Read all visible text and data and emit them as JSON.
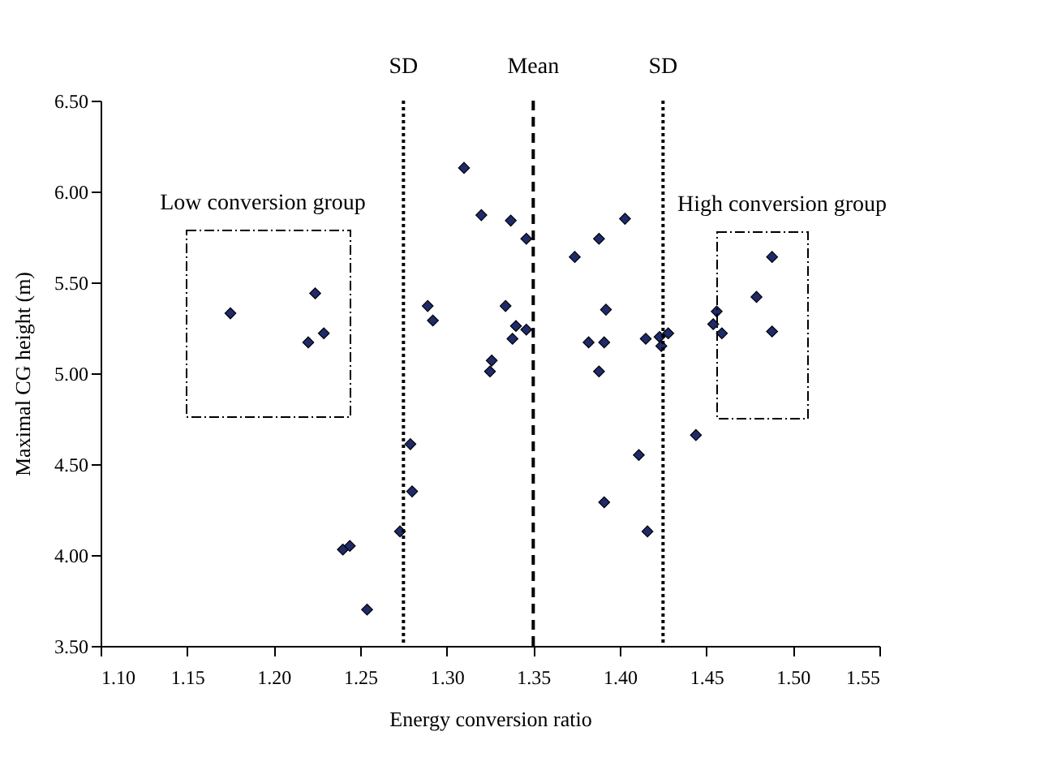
{
  "chart_data": {
    "type": "scatter",
    "xlabel": "Energy conversion ratio",
    "ylabel": "Maximal CG height (m)",
    "marker": "diamond",
    "grid": false,
    "xlim": [
      1.1,
      1.55
    ],
    "ylim": [
      3.5,
      6.5
    ],
    "xticks": [
      {
        "value": 1.1,
        "label": "1.10"
      },
      {
        "value": 1.15,
        "label": "1.15"
      },
      {
        "value": 1.2,
        "label": "1.20"
      },
      {
        "value": 1.25,
        "label": "1.25"
      },
      {
        "value": 1.3,
        "label": "1.30"
      },
      {
        "value": 1.35,
        "label": "1.35"
      },
      {
        "value": 1.4,
        "label": "1.40"
      },
      {
        "value": 1.45,
        "label": "1.45"
      },
      {
        "value": 1.5,
        "label": "1.50"
      },
      {
        "value": 1.55,
        "label": "1.55"
      }
    ],
    "yticks": [
      {
        "value": 3.5,
        "label": "3.50"
      },
      {
        "value": 4,
        "label": "4.00"
      },
      {
        "value": 4.5,
        "label": "4.50"
      },
      {
        "value": 5,
        "label": "5.00"
      },
      {
        "value": 5.5,
        "label": "5.50"
      },
      {
        "value": 6,
        "label": "6.00"
      },
      {
        "value": 6.5,
        "label": "6.50"
      }
    ],
    "series": [
      {
        "color": "#1f2a6b",
        "x": [
          1.175,
          1.224,
          1.22,
          1.229,
          1.279,
          1.28,
          1.273,
          1.24,
          1.244,
          1.254,
          1.31,
          1.32,
          1.337,
          1.346,
          1.403,
          1.388,
          1.374,
          1.289,
          1.292,
          1.334,
          1.34,
          1.338,
          1.346,
          1.326,
          1.325,
          1.392,
          1.382,
          1.391,
          1.388,
          1.415,
          1.423,
          1.428,
          1.424,
          1.444,
          1.411,
          1.391,
          1.416,
          1.488,
          1.479,
          1.456,
          1.454,
          1.459,
          1.488
        ],
        "values": [
          5.33,
          5.44,
          5.17,
          5.22,
          4.61,
          4.35,
          4.13,
          4.03,
          4.05,
          3.7,
          6.13,
          5.87,
          5.84,
          5.74,
          5.85,
          5.74,
          5.64,
          5.37,
          5.29,
          5.37,
          5.26,
          5.19,
          5.24,
          5.07,
          5.01,
          5.35,
          5.17,
          5.17,
          5.01,
          5.19,
          5.2,
          5.22,
          5.15,
          4.66,
          4.55,
          4.29,
          4.13,
          5.64,
          5.42,
          5.34,
          5.27,
          5.22,
          5.23
        ]
      }
    ],
    "ref_lines": [
      {
        "axis": "x",
        "value": 1.275,
        "label": "SD",
        "line_style": "dotted"
      },
      {
        "axis": "x",
        "value": 1.35,
        "label": "Mean",
        "line_style": "dashed"
      },
      {
        "axis": "x",
        "value": 1.425,
        "label": "SD",
        "line_style": "dotted"
      }
    ],
    "annotations": [
      "Low conversion group",
      "High conversion group"
    ]
  }
}
